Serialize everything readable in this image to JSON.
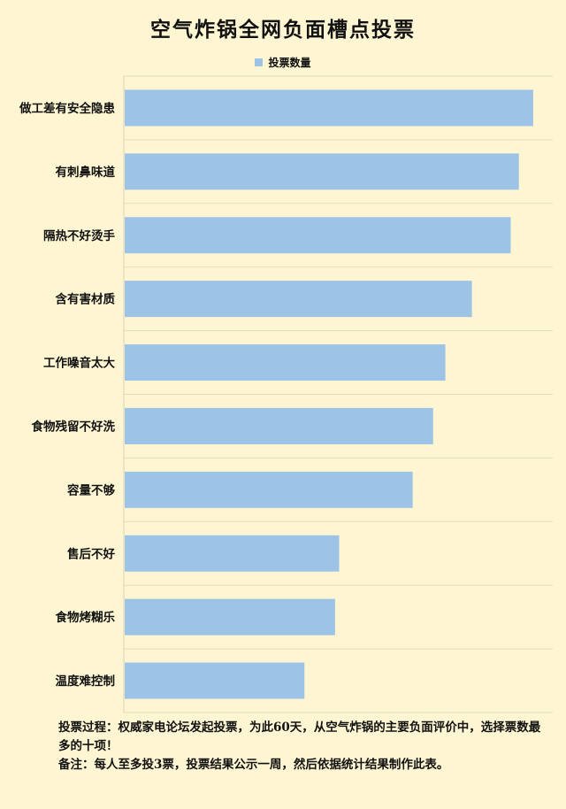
{
  "chart_data": {
    "type": "bar",
    "orientation": "horizontal",
    "title": "空气炸锅全网负面槽点投票",
    "legend": {
      "position": "top",
      "entries": [
        "投票数量"
      ]
    },
    "series": [
      {
        "name": "投票数量",
        "color": "#9dc3e6",
        "values": [
          100,
          96.5,
          94.5,
          85,
          78.5,
          75.5,
          70.5,
          52.5,
          51.5,
          44
        ]
      }
    ],
    "categories": [
      "做工差有安全隐患",
      "有刺鼻味道",
      "隔热不好烫手",
      "含有害材质",
      "工作噪音太大",
      "食物残留不好洗",
      "容量不够",
      "售后不好",
      "食物烤糊乐",
      "温度难控制"
    ],
    "xlim": [
      0,
      105
    ],
    "grid": true,
    "axis_labels_shown": false
  },
  "footnote": {
    "line1": "投票过程：权威家电论坛发起投票，为此60天，从空气炸锅的主要负面评价中，选择票数最多的十项！",
    "line2": "备注：每人至多投3票，投票结果公示一周，然后依据统计结果制作此表。"
  }
}
